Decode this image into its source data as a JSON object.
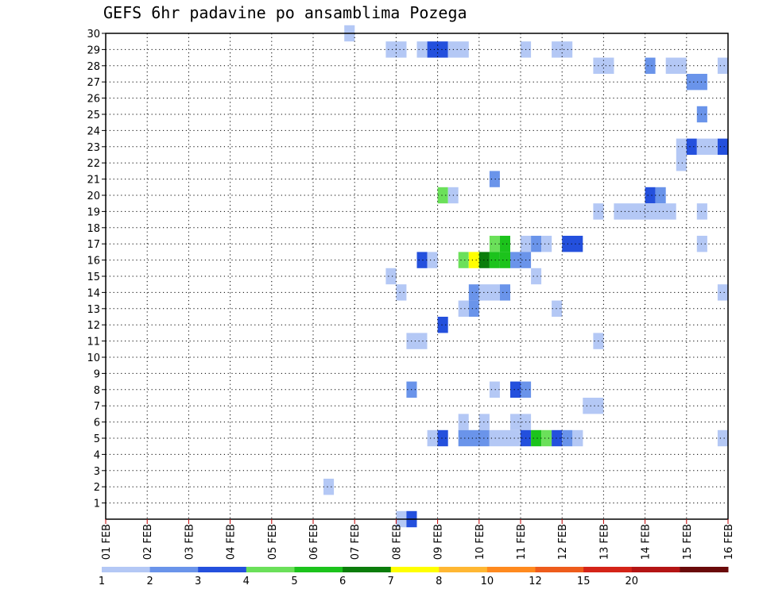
{
  "chart_data": {
    "type": "heatmap",
    "title": "GEFS 6hr padavine po ansamblima Pozega",
    "xlabel": "",
    "ylabel": "",
    "x_tick_labels": [
      "01 FEB",
      "02 FEB",
      "03 FEB",
      "04 FEB",
      "05 FEB",
      "06 FEB",
      "07 FEB",
      "08 FEB",
      "09 FEB",
      "10 FEB",
      "11 FEB",
      "12 FEB",
      "13 FEB",
      "14 FEB",
      "15 FEB",
      "16 FEB"
    ],
    "x_range_days": [
      1,
      16
    ],
    "x_step_hours": 6,
    "y_tick_labels": [
      "1",
      "2",
      "3",
      "4",
      "5",
      "6",
      "7",
      "8",
      "9",
      "10",
      "11",
      "12",
      "13",
      "14",
      "15",
      "16",
      "17",
      "18",
      "19",
      "20",
      "21",
      "22",
      "23",
      "24",
      "25",
      "26",
      "27",
      "28",
      "29",
      "30"
    ],
    "y_range": [
      0,
      30
    ],
    "grid": true,
    "legend_placement": "bottom",
    "legend": {
      "bins": [
        {
          "color": "#b4c8f5",
          "label": "1"
        },
        {
          "color": "#6a94ea",
          "label": "2"
        },
        {
          "color": "#2450dd",
          "label": "3"
        },
        {
          "color": "#6be05a",
          "label": "4"
        },
        {
          "color": "#1cc31c",
          "label": "5"
        },
        {
          "color": "#0b7d0b",
          "label": "6"
        },
        {
          "color": "#ffff00",
          "label": "7"
        },
        {
          "color": "#ffb733",
          "label": "8"
        },
        {
          "color": "#ff8a1f",
          "label": "10"
        },
        {
          "color": "#ee5c1c",
          "label": "12"
        },
        {
          "color": "#d42418",
          "label": "15"
        },
        {
          "color": "#b41414",
          "label": "20"
        },
        {
          "color": "#6a0a0a",
          "label": ""
        }
      ]
    },
    "cells_format": "[day_start, day_end, member, color_index]",
    "cells": [
      [
        6.75,
        7.0,
        30,
        0
      ],
      [
        7.75,
        8.25,
        29,
        0
      ],
      [
        8.5,
        8.75,
        29,
        0
      ],
      [
        8.75,
        9.25,
        29,
        2
      ],
      [
        9.25,
        9.75,
        29,
        0
      ],
      [
        11.0,
        11.25,
        29,
        0
      ],
      [
        11.75,
        12.25,
        29,
        0
      ],
      [
        12.75,
        13.25,
        28,
        0
      ],
      [
        14.0,
        14.25,
        28,
        1
      ],
      [
        14.5,
        15.0,
        28,
        0
      ],
      [
        15.75,
        16.0,
        28,
        0
      ],
      [
        15.0,
        15.5,
        27,
        1
      ],
      [
        15.25,
        15.5,
        25,
        1
      ],
      [
        14.75,
        15.0,
        23,
        0
      ],
      [
        15.0,
        15.25,
        23,
        2
      ],
      [
        15.25,
        15.75,
        23,
        0
      ],
      [
        15.75,
        16.0,
        23,
        2
      ],
      [
        14.75,
        15.0,
        22,
        0
      ],
      [
        10.25,
        10.5,
        21,
        1
      ],
      [
        9.0,
        9.25,
        20,
        3
      ],
      [
        9.25,
        9.5,
        20,
        0
      ],
      [
        14.0,
        14.25,
        20,
        2
      ],
      [
        14.25,
        14.5,
        20,
        1
      ],
      [
        12.75,
        13.0,
        19,
        0
      ],
      [
        13.25,
        14.75,
        19,
        0
      ],
      [
        15.25,
        15.5,
        19,
        0
      ],
      [
        10.25,
        10.5,
        17,
        3
      ],
      [
        10.5,
        10.75,
        17,
        4
      ],
      [
        11.0,
        11.25,
        17,
        0
      ],
      [
        11.25,
        11.5,
        17,
        1
      ],
      [
        11.5,
        11.75,
        17,
        0
      ],
      [
        12.0,
        12.5,
        17,
        2
      ],
      [
        15.25,
        15.5,
        17,
        0
      ],
      [
        8.5,
        8.75,
        16,
        2
      ],
      [
        8.75,
        9.0,
        16,
        0
      ],
      [
        9.5,
        9.75,
        16,
        3
      ],
      [
        9.75,
        10.0,
        16,
        6
      ],
      [
        10.0,
        10.25,
        16,
        5
      ],
      [
        10.25,
        10.5,
        16,
        4
      ],
      [
        10.5,
        10.75,
        16,
        4
      ],
      [
        10.75,
        11.25,
        16,
        1
      ],
      [
        7.75,
        8.0,
        15,
        0
      ],
      [
        11.25,
        11.5,
        15,
        0
      ],
      [
        8.0,
        8.25,
        14,
        0
      ],
      [
        9.75,
        10.0,
        14,
        1
      ],
      [
        10.0,
        10.5,
        14,
        0
      ],
      [
        10.5,
        10.75,
        14,
        1
      ],
      [
        15.75,
        16.0,
        14,
        0
      ],
      [
        9.5,
        9.75,
        13,
        0
      ],
      [
        9.75,
        10.0,
        13,
        1
      ],
      [
        11.75,
        12.0,
        13,
        0
      ],
      [
        9.0,
        9.25,
        12,
        2
      ],
      [
        8.25,
        8.75,
        11,
        0
      ],
      [
        12.75,
        13.0,
        11,
        0
      ],
      [
        8.25,
        8.5,
        8,
        1
      ],
      [
        10.25,
        10.5,
        8,
        0
      ],
      [
        10.75,
        11.0,
        8,
        2
      ],
      [
        11.0,
        11.25,
        8,
        1
      ],
      [
        12.5,
        13.0,
        7,
        0
      ],
      [
        9.5,
        9.75,
        6,
        0
      ],
      [
        10.0,
        10.25,
        6,
        0
      ],
      [
        10.75,
        11.25,
        6,
        0
      ],
      [
        8.75,
        9.0,
        5,
        0
      ],
      [
        9.0,
        9.25,
        5,
        2
      ],
      [
        9.5,
        10.25,
        5,
        1
      ],
      [
        10.25,
        11.0,
        5,
        0
      ],
      [
        11.0,
        11.25,
        5,
        2
      ],
      [
        11.25,
        11.5,
        5,
        4
      ],
      [
        11.5,
        11.75,
        5,
        3
      ],
      [
        11.75,
        12.0,
        5,
        2
      ],
      [
        12.0,
        12.25,
        5,
        1
      ],
      [
        12.25,
        12.5,
        5,
        0
      ],
      [
        15.75,
        16.0,
        5,
        0
      ],
      [
        6.25,
        6.5,
        2,
        0
      ],
      [
        8.0,
        8.25,
        0,
        0
      ],
      [
        8.25,
        8.5,
        0,
        2
      ]
    ]
  }
}
